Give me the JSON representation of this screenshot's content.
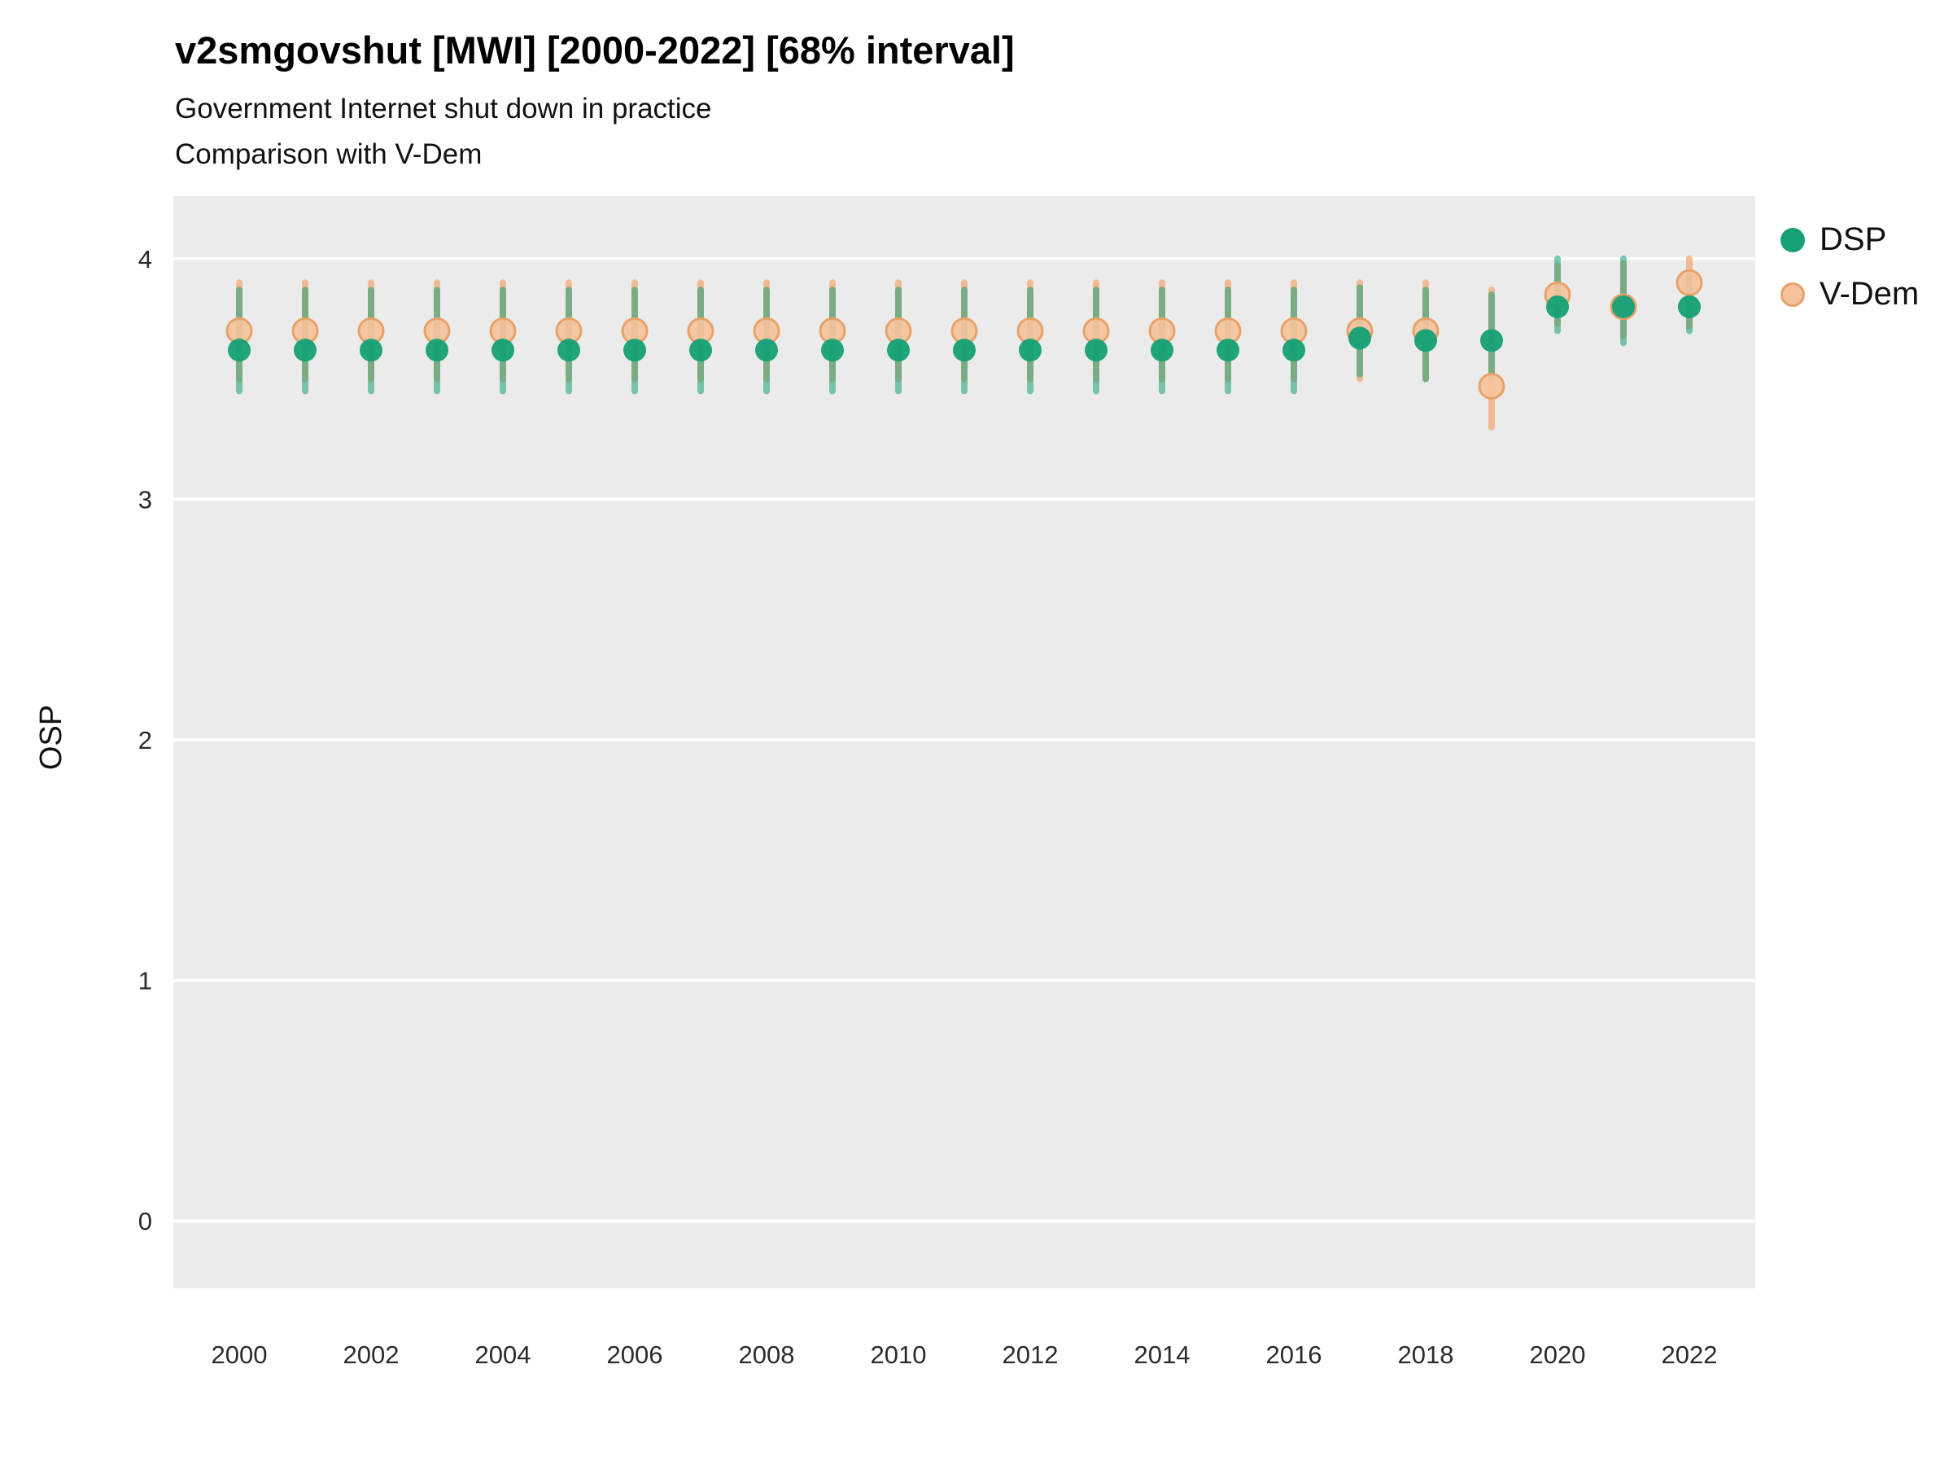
{
  "chart_data": {
    "type": "scatter",
    "title": "v2smgovshut [MWI] [2000-2022] [68% interval]",
    "subtitle": "Government Internet shut down in practice",
    "subtitle2": "Comparison with V-Dem",
    "ylabel": "OSP",
    "xlabel": "",
    "interval": "68%",
    "country": "MWI",
    "grid": true,
    "legend_position": "right",
    "panel_color": "#ebebeb",
    "gridline_color": "#ffffff",
    "xlim": [
      1999,
      2023
    ],
    "ylim": [
      -0.28,
      4.26
    ],
    "yticks": [
      0,
      1,
      2,
      3,
      4
    ],
    "xticks": [
      2000,
      2002,
      2004,
      2006,
      2008,
      2010,
      2012,
      2014,
      2016,
      2018,
      2020,
      2022
    ],
    "x": [
      2000,
      2001,
      2002,
      2003,
      2004,
      2005,
      2006,
      2007,
      2008,
      2009,
      2010,
      2011,
      2012,
      2013,
      2014,
      2015,
      2016,
      2017,
      2018,
      2019,
      2020,
      2021,
      2022
    ],
    "series": [
      {
        "name": "DSP",
        "point_fill": "#16a077",
        "bar_color": "#16a077",
        "bar_opacity": 0.55,
        "values": [
          3.62,
          3.62,
          3.62,
          3.62,
          3.62,
          3.62,
          3.62,
          3.62,
          3.62,
          3.62,
          3.62,
          3.62,
          3.62,
          3.62,
          3.62,
          3.62,
          3.62,
          3.67,
          3.66,
          3.66,
          3.8,
          3.8,
          3.8
        ],
        "lo": [
          3.45,
          3.45,
          3.45,
          3.45,
          3.45,
          3.45,
          3.45,
          3.45,
          3.45,
          3.45,
          3.45,
          3.45,
          3.45,
          3.45,
          3.45,
          3.45,
          3.45,
          3.52,
          3.5,
          3.5,
          3.7,
          3.65,
          3.7
        ],
        "hi": [
          3.87,
          3.87,
          3.87,
          3.87,
          3.87,
          3.87,
          3.87,
          3.87,
          3.87,
          3.87,
          3.87,
          3.87,
          3.87,
          3.87,
          3.87,
          3.87,
          3.87,
          3.88,
          3.87,
          3.85,
          4.0,
          4.0,
          3.93
        ]
      },
      {
        "name": "V-Dem",
        "point_fill": "#f5c29b",
        "point_stroke": "#e8a268",
        "bar_color": "#f2b183",
        "bar_opacity": 0.85,
        "values": [
          3.7,
          3.7,
          3.7,
          3.7,
          3.7,
          3.7,
          3.7,
          3.7,
          3.7,
          3.7,
          3.7,
          3.7,
          3.7,
          3.7,
          3.7,
          3.7,
          3.7,
          3.7,
          3.7,
          3.47,
          3.85,
          3.8,
          3.9
        ],
        "lo": [
          3.5,
          3.5,
          3.5,
          3.5,
          3.5,
          3.5,
          3.5,
          3.5,
          3.5,
          3.5,
          3.5,
          3.5,
          3.5,
          3.5,
          3.5,
          3.5,
          3.5,
          3.5,
          3.5,
          3.3,
          3.73,
          3.68,
          3.72
        ],
        "hi": [
          3.9,
          3.9,
          3.9,
          3.9,
          3.9,
          3.9,
          3.9,
          3.9,
          3.9,
          3.9,
          3.9,
          3.9,
          3.9,
          3.9,
          3.9,
          3.9,
          3.9,
          3.9,
          3.9,
          3.87,
          3.97,
          3.98,
          4.0
        ]
      }
    ]
  }
}
